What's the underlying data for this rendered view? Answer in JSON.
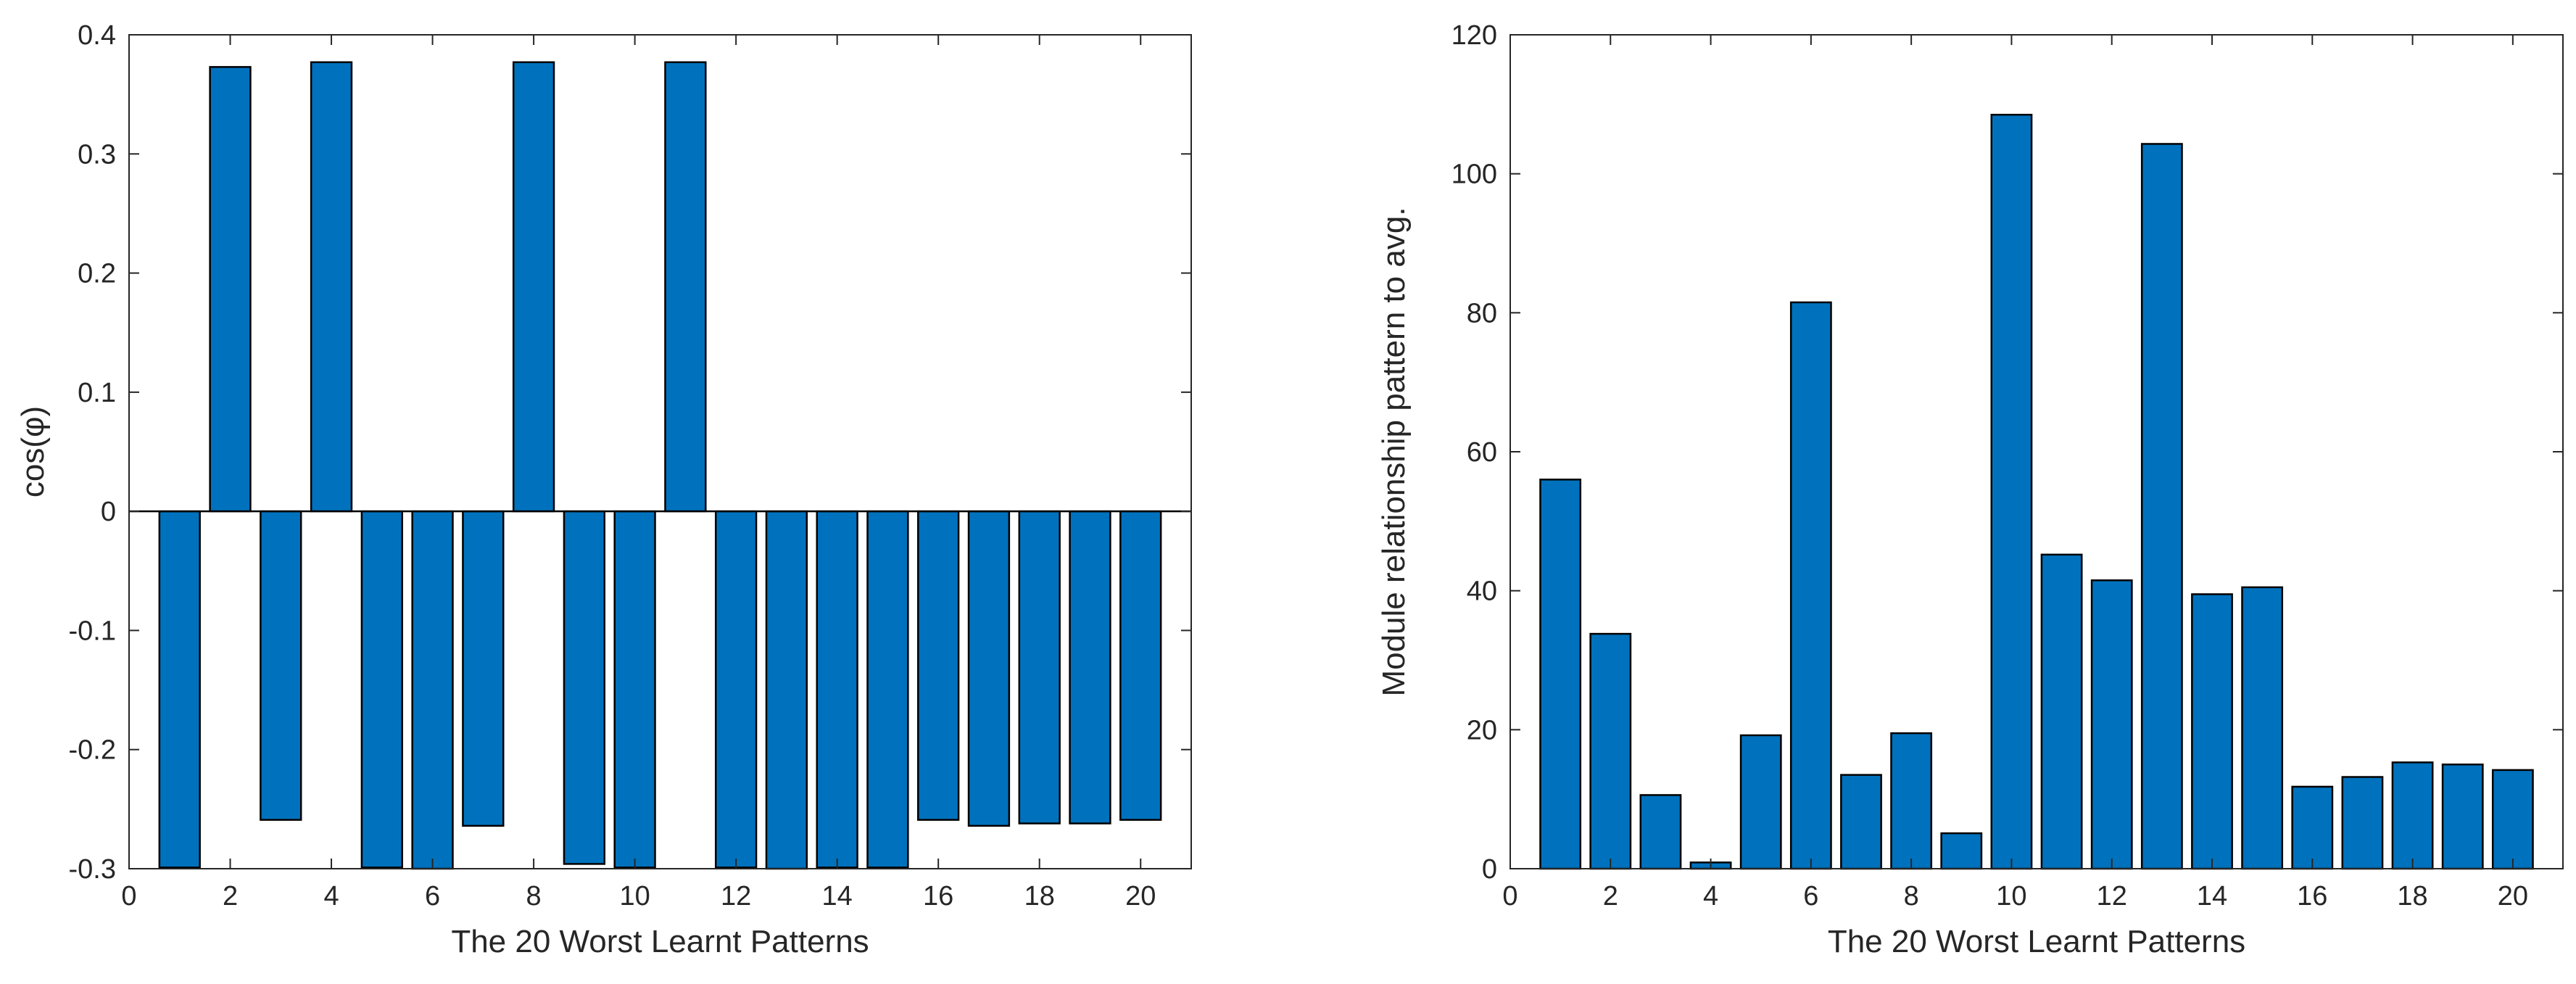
{
  "chart_data": [
    {
      "type": "bar",
      "title": "",
      "xlabel": "The 20 Worst Learnt Patterns",
      "ylabel": "cos(φ)",
      "xlim": [
        0,
        21
      ],
      "ylim": [
        -0.3,
        0.4
      ],
      "xticks": [
        "0",
        "2",
        "4",
        "6",
        "8",
        "10",
        "12",
        "14",
        "16",
        "18",
        "20"
      ],
      "yticks": [
        "-0.3",
        "-0.2",
        "-0.1",
        "0",
        "0.1",
        "0.2",
        "0.3",
        "0.4"
      ],
      "bar_color": "#0072BD",
      "categories": [
        1,
        2,
        3,
        4,
        5,
        6,
        7,
        8,
        9,
        10,
        11,
        12,
        13,
        14,
        15,
        16,
        17,
        18,
        19,
        20
      ],
      "values": [
        -0.299,
        0.373,
        -0.259,
        0.377,
        -0.299,
        -0.3,
        -0.264,
        0.377,
        -0.296,
        -0.299,
        0.377,
        -0.299,
        -0.3,
        -0.299,
        -0.299,
        -0.259,
        -0.264,
        -0.262,
        -0.262,
        -0.259
      ]
    },
    {
      "type": "bar",
      "title": "",
      "xlabel": "The 20 Worst Learnt Patterns",
      "ylabel": "Module relationship pattern to avg.",
      "xlim": [
        0,
        21
      ],
      "ylim": [
        0,
        120
      ],
      "xticks": [
        "0",
        "2",
        "4",
        "6",
        "8",
        "10",
        "12",
        "14",
        "16",
        "18",
        "20"
      ],
      "yticks": [
        "0",
        "20",
        "40",
        "60",
        "80",
        "100",
        "120"
      ],
      "bar_color": "#0072BD",
      "categories": [
        1,
        2,
        3,
        4,
        5,
        6,
        7,
        8,
        9,
        10,
        11,
        12,
        13,
        14,
        15,
        16,
        17,
        18,
        19,
        20
      ],
      "values": [
        56,
        33.8,
        10.6,
        0.9,
        19.2,
        81.5,
        13.5,
        19.5,
        5.1,
        108.5,
        45.2,
        41.5,
        104.3,
        39.5,
        40.5,
        11.8,
        13.2,
        15.3,
        15,
        14.2
      ]
    }
  ]
}
